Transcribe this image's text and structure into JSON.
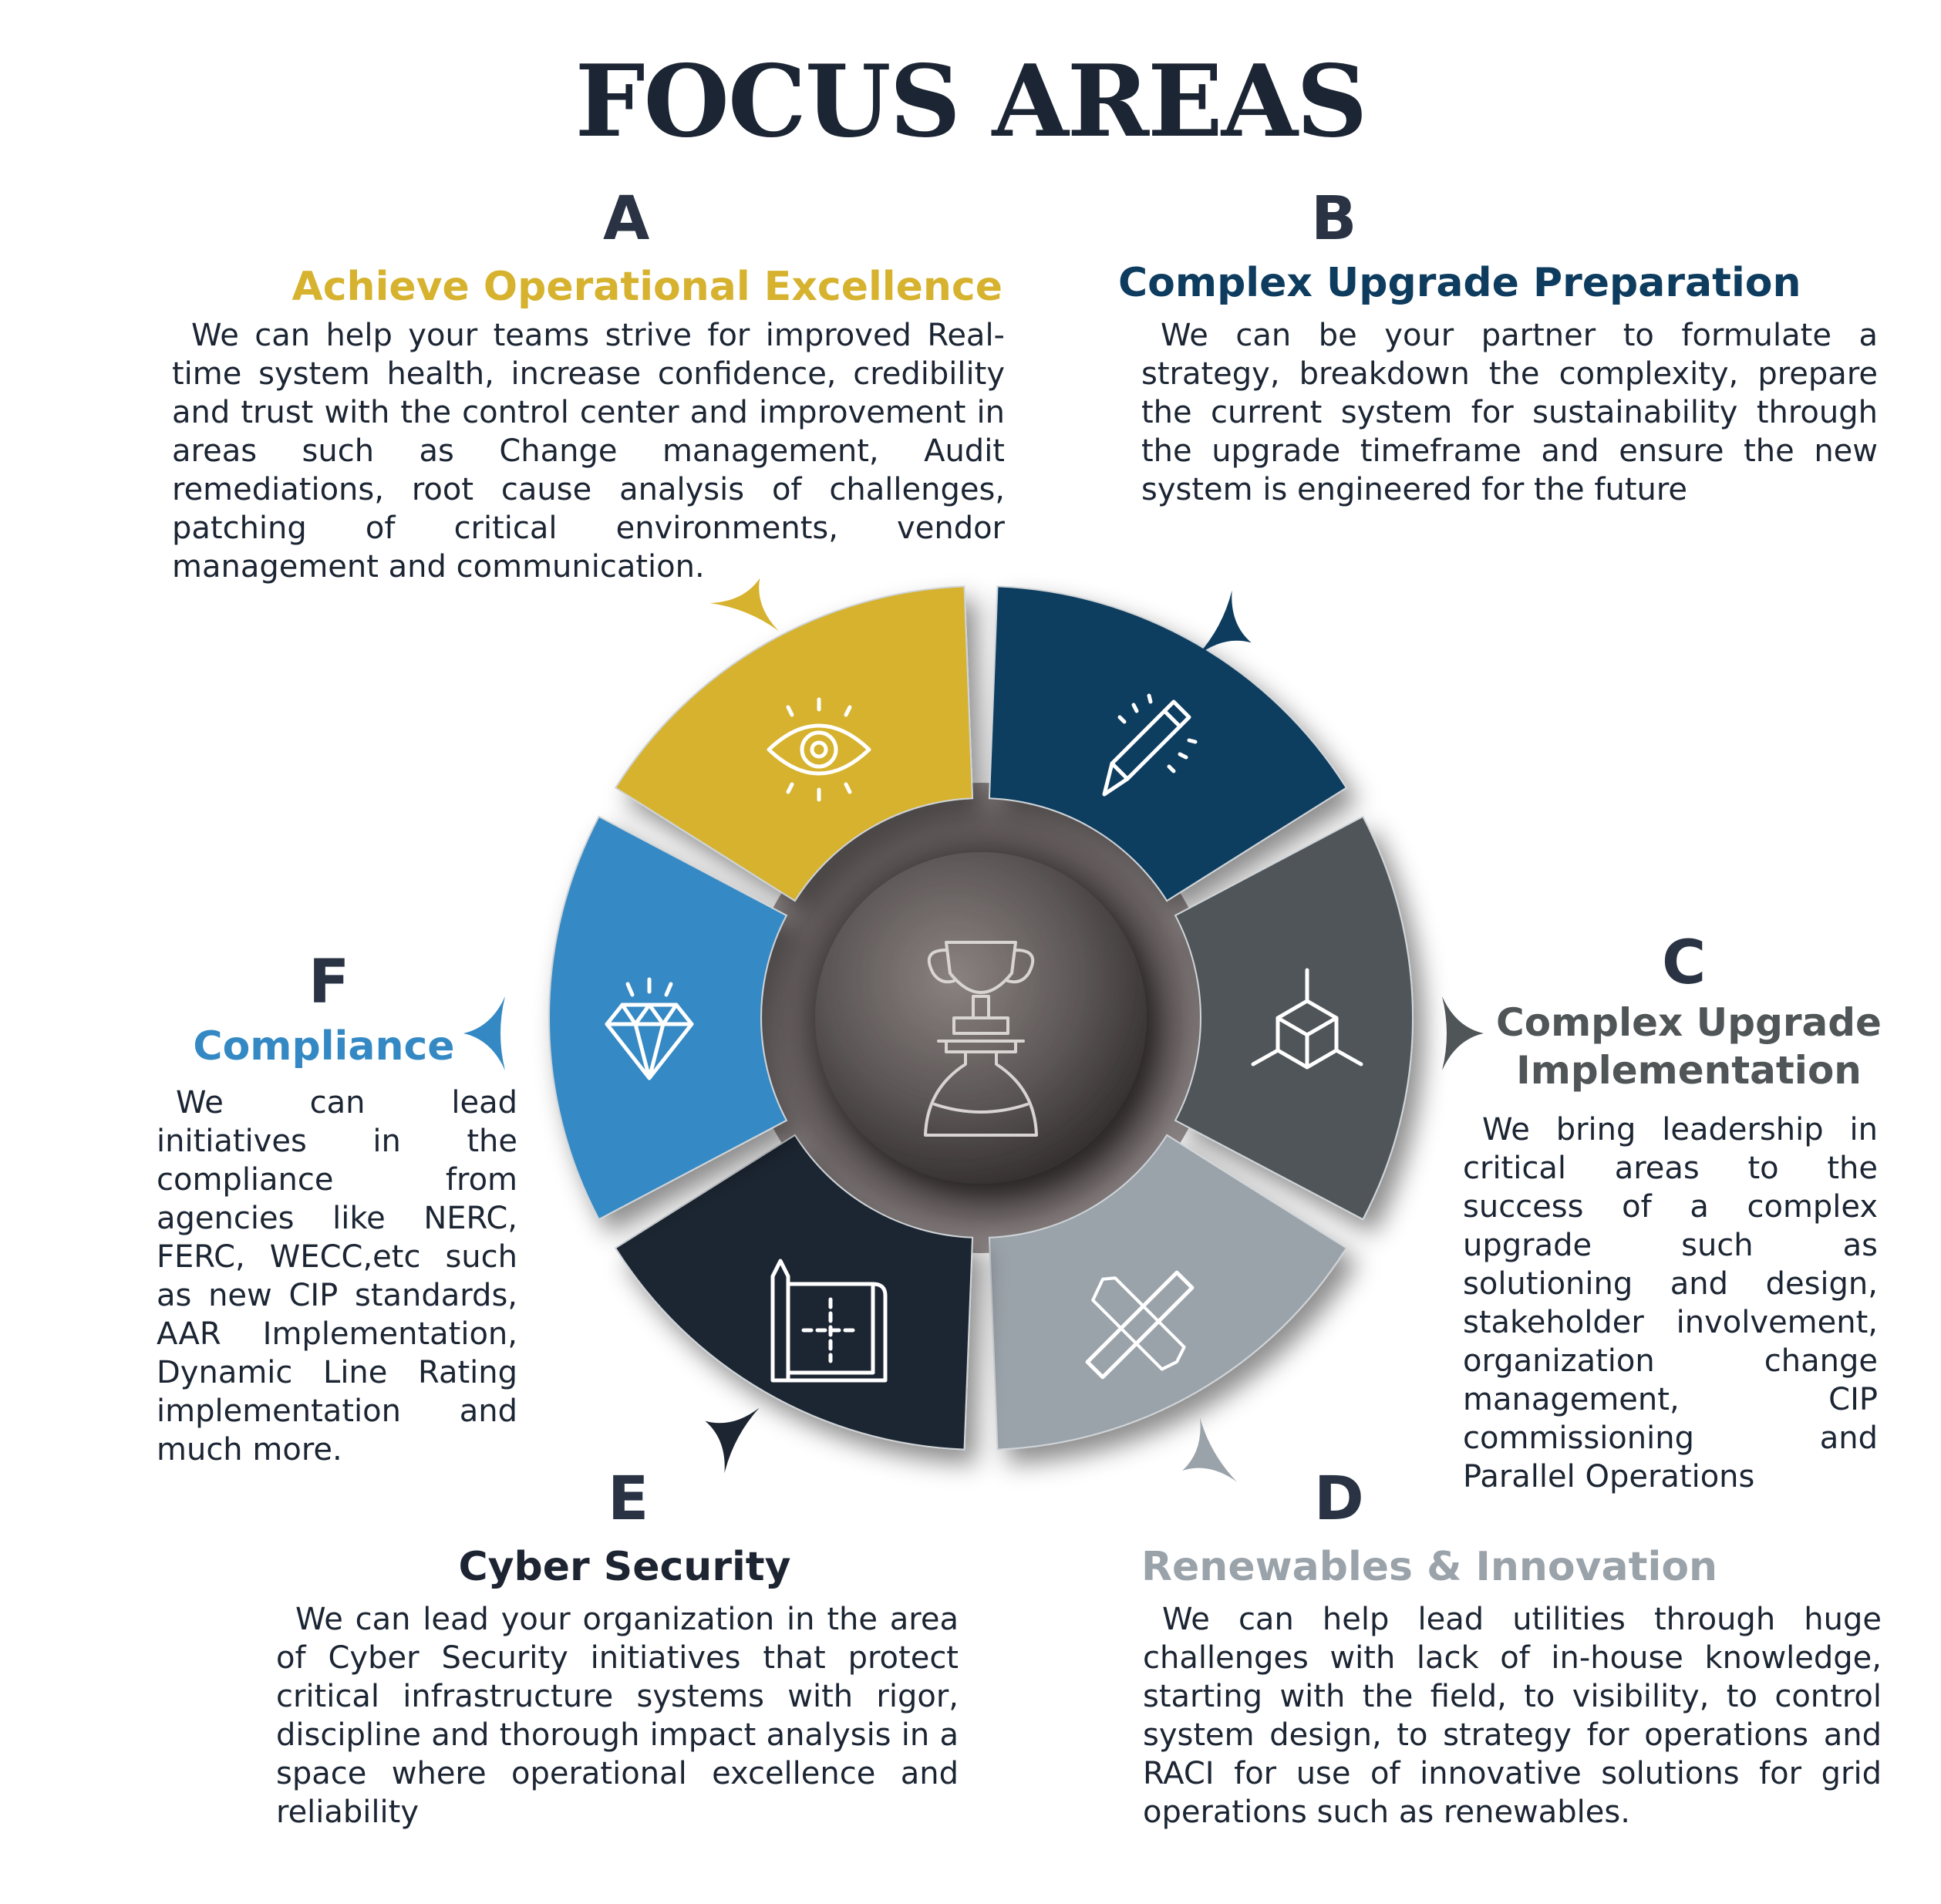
{
  "title": "FOCUS AREAS",
  "colors": {
    "a": "#d6b22e",
    "b": "#0e3c5f",
    "c": "#505558",
    "d": "#9ba3aa",
    "e": "#1e2532",
    "f": "#3489c4",
    "hub": "#6e6868"
  },
  "areas": {
    "a": {
      "letter": "A",
      "heading": "Achieve Operational Excellence",
      "body": "We can help your teams strive for improved Real-time system health, increase confidence, credibility and trust with the control center and improvement in areas such as Change management, Audit remediations, root cause analysis of challenges, patching of critical environments, vendor management and communication.",
      "icon": "eye-icon"
    },
    "b": {
      "letter": "B",
      "heading": "Complex Upgrade Preparation",
      "body": "We can be your partner to formulate a strategy, breakdown the complexity, prepare the current system for sustainability through the upgrade timeframe and ensure the new system is engineered for the future",
      "icon": "pencil-icon"
    },
    "c": {
      "letter": "C",
      "heading_line1": "Complex Upgrade",
      "heading_line2": "Implementation",
      "body": "We bring leadership in critical areas to the success of a complex upgrade such as solutioning and design, stakeholder involvement, organization change management, CIP commissioning and Parallel Operations",
      "icon": "cube-icon"
    },
    "d": {
      "letter": "D",
      "heading": "Renewables & Innovation",
      "body": "We can help lead utilities through huge challenges with lack of in-house knowledge, starting with the field, to visibility, to control system design, to strategy for operations and RACI for use of innovative solutions for grid operations such as renewables.",
      "icon": "pencil-ruler-icon"
    },
    "e": {
      "letter": "E",
      "heading": "Cyber Security",
      "body": "We can lead your organization in the area of Cyber Security initiatives that protect critical infrastructure systems with rigor, discipline and thorough impact analysis in a space where operational excellence and reliability",
      "icon": "blueprint-icon"
    },
    "f": {
      "letter": "F",
      "heading": "Compliance",
      "body": "We can lead initiatives in the compliance from agencies like NERC, FERC, WECC,etc such as new CIP standards, AAR Implementation, Dynamic Line Rating implementation and much more.",
      "icon": "diamond-icon"
    }
  },
  "hub": {
    "icon": "trophy-icon"
  }
}
